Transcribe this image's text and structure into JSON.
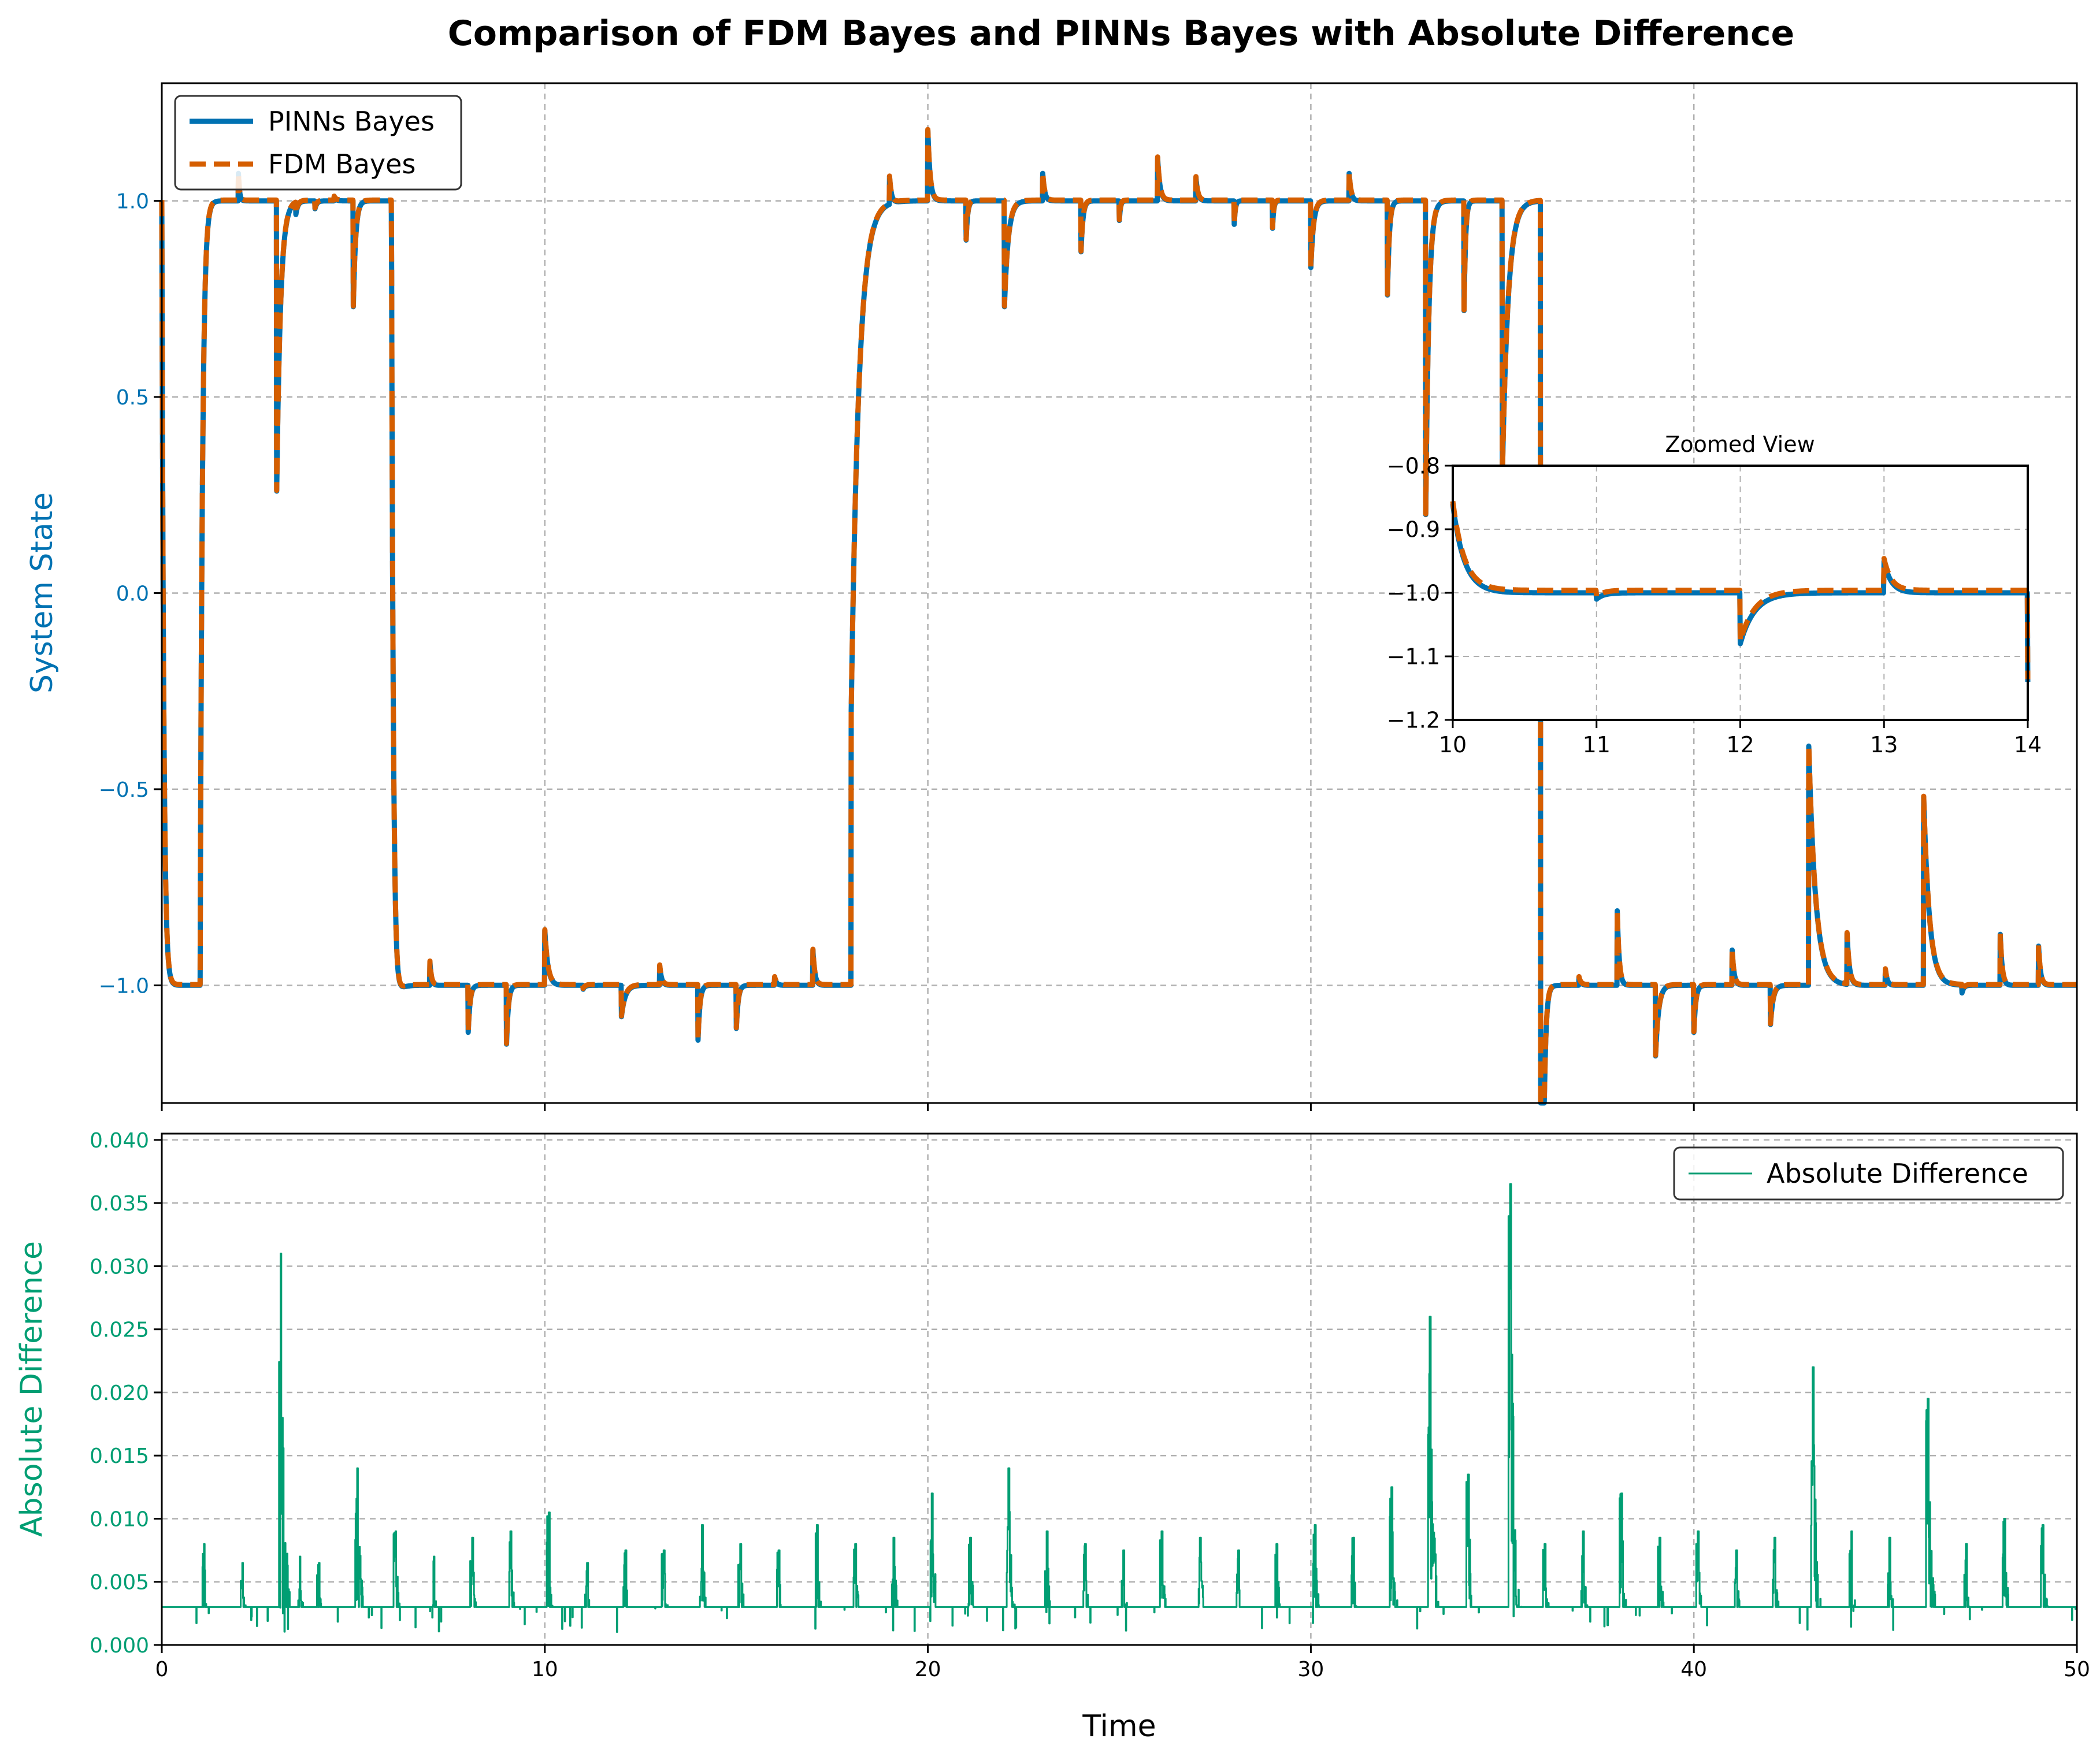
{
  "title": "Comparison of FDM Bayes and PINNs Bayes with Absolute Difference",
  "colors": {
    "pinns": "#0072B2",
    "fdm": "#D55E00",
    "diff": "#009E73",
    "grid": "#b0b0b0"
  },
  "chart_data": [
    {
      "type": "line",
      "panel": "top",
      "ylabel": "System State",
      "xlim": [
        0,
        50
      ],
      "ylim": [
        -1.3,
        1.3
      ],
      "x_ticks": [
        0,
        10,
        20,
        30,
        40,
        50
      ],
      "y_ticks": [
        -1.0,
        -0.5,
        0.0,
        0.5,
        1.0
      ],
      "y_tick_labels": [
        "−1.0",
        "−0.5",
        "0.0",
        "0.5",
        "1.0"
      ],
      "grid": true,
      "legend_placement": "upper-left",
      "series": [
        {
          "name": "PINNs Bayes",
          "style": "solid"
        },
        {
          "name": "FDM Bayes",
          "style": "dashed"
        }
      ],
      "segments": [
        {
          "start": 0.0,
          "end": 1.0,
          "level": -1
        },
        {
          "start": 1.0,
          "end": 6.0,
          "level": 1
        },
        {
          "start": 6.0,
          "end": 18.0,
          "level": -1
        },
        {
          "start": 18.0,
          "end": 36.0,
          "level": 1
        },
        {
          "start": 36.0,
          "end": 50.0,
          "level": -1
        }
      ],
      "transients": [
        [
          0.0,
          2.0,
          0.05
        ],
        [
          1.0,
          -2.0,
          0.06
        ],
        [
          2.0,
          0.07,
          0.03
        ],
        [
          3.0,
          -0.74,
          0.1
        ],
        [
          3.5,
          -0.03,
          0.05
        ],
        [
          4.0,
          -0.02,
          0.05
        ],
        [
          4.5,
          0.01,
          0.05
        ],
        [
          5.0,
          -0.27,
          0.06
        ],
        [
          6.0,
          2.0,
          0.05
        ],
        [
          6.0,
          -0.17,
          0.1
        ],
        [
          7.0,
          0.06,
          0.04
        ],
        [
          8.0,
          -0.12,
          0.05
        ],
        [
          9.0,
          -0.15,
          0.05
        ],
        [
          10.0,
          0.14,
          0.08
        ],
        [
          11.0,
          -0.01,
          0.05
        ],
        [
          12.0,
          -0.08,
          0.1
        ],
        [
          13.0,
          0.05,
          0.05
        ],
        [
          14.0,
          -0.14,
          0.05
        ],
        [
          15.0,
          -0.11,
          0.05
        ],
        [
          16.0,
          0.02,
          0.05
        ],
        [
          17.0,
          0.09,
          0.05
        ],
        [
          18.0,
          -1.3,
          0.2
        ],
        [
          19.0,
          0.07,
          0.05
        ],
        [
          20.0,
          0.18,
          0.06
        ],
        [
          21.0,
          -0.1,
          0.04
        ],
        [
          22.0,
          -0.27,
          0.1
        ],
        [
          23.0,
          0.07,
          0.05
        ],
        [
          24.0,
          -0.13,
          0.05
        ],
        [
          25.0,
          -0.05,
          0.03
        ],
        [
          26.0,
          0.11,
          0.06
        ],
        [
          27.0,
          0.06,
          0.05
        ],
        [
          28.0,
          -0.06,
          0.03
        ],
        [
          29.0,
          -0.07,
          0.03
        ],
        [
          30.0,
          -0.17,
          0.07
        ],
        [
          31.0,
          0.07,
          0.05
        ],
        [
          32.0,
          -0.24,
          0.05
        ],
        [
          33.0,
          -0.8,
          0.08
        ],
        [
          34.0,
          -0.28,
          0.04
        ],
        [
          35.0,
          -0.7,
          0.15
        ],
        [
          36.0,
          -2.0,
          0.05
        ],
        [
          36.0,
          0.07,
          0.02
        ],
        [
          37.0,
          0.02,
          0.05
        ],
        [
          38.0,
          0.19,
          0.05
        ],
        [
          39.0,
          -0.18,
          0.08
        ],
        [
          40.0,
          -0.12,
          0.05
        ],
        [
          41.0,
          0.09,
          0.05
        ],
        [
          42.0,
          -0.1,
          0.07
        ],
        [
          43.0,
          0.61,
          0.18
        ],
        [
          44.0,
          0.13,
          0.06
        ],
        [
          45.0,
          0.04,
          0.05
        ],
        [
          46.0,
          0.48,
          0.15
        ],
        [
          47.0,
          -0.02,
          0.05
        ],
        [
          48.0,
          0.13,
          0.05
        ],
        [
          49.0,
          0.1,
          0.05
        ]
      ]
    },
    {
      "type": "line",
      "panel": "inset",
      "title": "Zoomed View",
      "xlim": [
        10,
        14
      ],
      "ylim": [
        -1.2,
        -0.8
      ],
      "x_ticks": [
        10,
        11,
        12,
        13,
        14
      ],
      "y_ticks": [
        -1.2,
        -1.1,
        -1.0,
        -0.9,
        -0.8
      ],
      "y_tick_labels": [
        "−1.2",
        "−1.1",
        "−1.0",
        "−0.9",
        "−0.8"
      ],
      "grid": true
    },
    {
      "type": "line",
      "panel": "bottom",
      "xlabel": "Time",
      "ylabel": "Absolute Difference",
      "xlim": [
        0,
        50
      ],
      "ylim": [
        0,
        0.0405
      ],
      "x_ticks": [
        0,
        10,
        20,
        30,
        40,
        50
      ],
      "y_ticks": [
        0.0,
        0.005,
        0.01,
        0.015,
        0.02,
        0.025,
        0.03,
        0.035,
        0.04
      ],
      "y_tick_labels": [
        "0.000",
        "0.005",
        "0.010",
        "0.015",
        "0.020",
        "0.025",
        "0.030",
        "0.035",
        "0.040"
      ],
      "grid": true,
      "legend_placement": "upper-right",
      "series": [
        {
          "name": "Absolute Difference"
        }
      ],
      "baseline": 0.003,
      "spikes": [
        [
          1.1,
          0.008
        ],
        [
          2.1,
          0.0065
        ],
        [
          3.1,
          0.031
        ],
        [
          3.6,
          0.007
        ],
        [
          4.1,
          0.0065
        ],
        [
          5.1,
          0.014
        ],
        [
          6.1,
          0.009
        ],
        [
          7.1,
          0.007
        ],
        [
          8.1,
          0.0085
        ],
        [
          9.1,
          0.009
        ],
        [
          10.1,
          0.0105
        ],
        [
          11.1,
          0.0065
        ],
        [
          12.1,
          0.0075
        ],
        [
          13.1,
          0.0075
        ],
        [
          14.1,
          0.0095
        ],
        [
          15.1,
          0.008
        ],
        [
          16.1,
          0.0075
        ],
        [
          17.1,
          0.0095
        ],
        [
          18.1,
          0.008
        ],
        [
          19.1,
          0.0085
        ],
        [
          20.1,
          0.012
        ],
        [
          21.1,
          0.0085
        ],
        [
          22.1,
          0.014
        ],
        [
          23.1,
          0.009
        ],
        [
          24.1,
          0.008
        ],
        [
          25.1,
          0.0075
        ],
        [
          26.1,
          0.009
        ],
        [
          27.1,
          0.0085
        ],
        [
          28.1,
          0.0075
        ],
        [
          29.1,
          0.008
        ],
        [
          30.1,
          0.0095
        ],
        [
          31.1,
          0.0085
        ],
        [
          32.1,
          0.0125
        ],
        [
          33.1,
          0.026
        ],
        [
          34.1,
          0.0135
        ],
        [
          35.2,
          0.0365
        ],
        [
          36.1,
          0.008
        ],
        [
          37.1,
          0.009
        ],
        [
          38.1,
          0.012
        ],
        [
          39.1,
          0.0085
        ],
        [
          40.1,
          0.009
        ],
        [
          41.1,
          0.0075
        ],
        [
          42.1,
          0.0085
        ],
        [
          43.1,
          0.022
        ],
        [
          44.1,
          0.009
        ],
        [
          45.1,
          0.0085
        ],
        [
          46.1,
          0.0195
        ],
        [
          47.1,
          0.008
        ],
        [
          48.1,
          0.01
        ],
        [
          49.1,
          0.0095
        ]
      ]
    }
  ]
}
